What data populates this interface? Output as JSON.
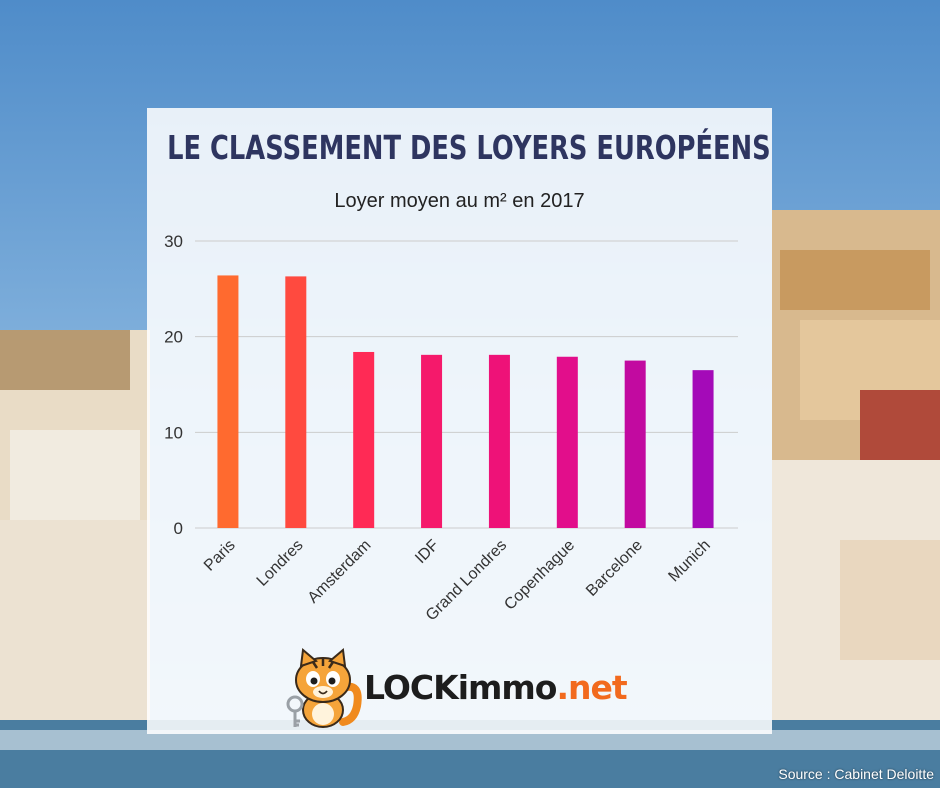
{
  "title": "LE CLASSEMENT DES LOYERS EUROPÉENS",
  "subtitle": "Loyer moyen au m² en 2017",
  "source": "Source : Cabinet Deloitte",
  "logo": {
    "text_main": "LOCKimmo",
    "text_ext": ".net",
    "icon": "cat-mascot-icon"
  },
  "colors": {
    "title": "#2e3560",
    "bars": [
      "#ff6a2f",
      "#ff4a3f",
      "#ff2a55",
      "#f5196b",
      "#ee1278",
      "#e20e8b",
      "#c20aa0",
      "#a40ab8"
    ],
    "logo_accent": "#f26a1e"
  },
  "chart_data": {
    "type": "bar",
    "title": "",
    "xlabel": "",
    "ylabel": "",
    "categories": [
      "Paris",
      "Londres",
      "Amsterdam",
      "IDF",
      "Grand Londres",
      "Copenhague",
      "Barcelone",
      "Munich"
    ],
    "values": [
      26.4,
      26.3,
      18.4,
      18.1,
      18.1,
      17.9,
      17.5,
      16.5
    ],
    "ylim": [
      0,
      30
    ],
    "yticks": [
      0,
      10,
      20,
      30
    ],
    "grid": true
  }
}
